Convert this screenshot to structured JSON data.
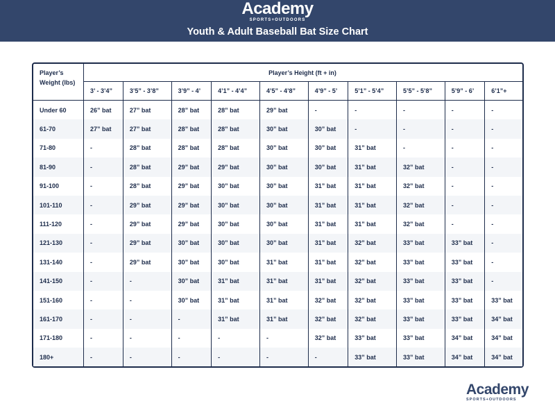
{
  "header": {
    "logo_text": "Academy",
    "logo_sub": "SPORTS+OUTDOORS",
    "title": "Youth & Adult Baseball Bat Size Chart"
  },
  "table": {
    "weight_header": "Player’s Weight (lbs)",
    "height_header": "Player’s Height (ft + in)",
    "columns": [
      "3’ - 3’4”",
      "3’5” - 3’8”",
      "3’9” - 4’",
      "4’1” - 4’4”",
      "4’5” - 4’8”",
      "4’9” - 5’",
      "5’1” - 5’4”",
      "5’5” - 5’8”",
      "5’9” - 6’",
      "6’1”+"
    ],
    "rows": [
      {
        "weight": "Under 60",
        "cells": [
          "26” bat",
          "27” bat",
          "28” bat",
          "28” bat",
          "29” bat",
          "-",
          "-",
          "-",
          "-",
          "-"
        ]
      },
      {
        "weight": "61-70",
        "cells": [
          "27” bat",
          "27” bat",
          "28” bat",
          "28” bat",
          "30” bat",
          "30” bat",
          "-",
          "-",
          "-",
          "-"
        ]
      },
      {
        "weight": "71-80",
        "cells": [
          "-",
          "28” bat",
          "28” bat",
          "28” bat",
          "30” bat",
          "30” bat",
          "31” bat",
          "-",
          "-",
          "-"
        ]
      },
      {
        "weight": "81-90",
        "cells": [
          "-",
          "28” bat",
          "29” bat",
          "29” bat",
          "30” bat",
          "30” bat",
          "31” bat",
          "32” bat",
          "-",
          "-"
        ]
      },
      {
        "weight": "91-100",
        "cells": [
          "-",
          "28” bat",
          "29” bat",
          "30” bat",
          "30” bat",
          "31” bat",
          "31” bat",
          "32” bat",
          "-",
          "-"
        ]
      },
      {
        "weight": "101-110",
        "cells": [
          "-",
          "29” bat",
          "29” bat",
          "30” bat",
          "30” bat",
          "31” bat",
          "31” bat",
          "32” bat",
          "-",
          "-"
        ]
      },
      {
        "weight": "111-120",
        "cells": [
          "-",
          "29” bat",
          "29” bat",
          "30” bat",
          "30” bat",
          "31” bat",
          "31” bat",
          "32” bat",
          "-",
          "-"
        ]
      },
      {
        "weight": "121-130",
        "cells": [
          "-",
          "29” bat",
          "30” bat",
          "30” bat",
          "30” bat",
          "31” bat",
          "32” bat",
          "33” bat",
          "33” bat",
          "-"
        ]
      },
      {
        "weight": "131-140",
        "cells": [
          "-",
          "29” bat",
          "30” bat",
          "30” bat",
          "31” bat",
          "31” bat",
          "32” bat",
          "33” bat",
          "33” bat",
          "-"
        ]
      },
      {
        "weight": "141-150",
        "cells": [
          "-",
          "-",
          "30” bat",
          "31” bat",
          "31” bat",
          "31” bat",
          "32” bat",
          "33” bat",
          "33” bat",
          "-"
        ]
      },
      {
        "weight": "151-160",
        "cells": [
          "-",
          "-",
          "30” bat",
          "31” bat",
          "31” bat",
          "32” bat",
          "32” bat",
          "33” bat",
          "33” bat",
          "33” bat"
        ]
      },
      {
        "weight": "161-170",
        "cells": [
          "-",
          "-",
          "-",
          "31” bat",
          "31” bat",
          "32” bat",
          "32” bat",
          "33” bat",
          "33” bat",
          "34” bat"
        ]
      },
      {
        "weight": "171-180",
        "cells": [
          "-",
          "-",
          "-",
          "-",
          "-",
          "32” bat",
          "33” bat",
          "33” bat",
          "34” bat",
          "34” bat"
        ]
      },
      {
        "weight": "180+",
        "cells": [
          "-",
          "-",
          "-",
          "-",
          "-",
          "-",
          "33” bat",
          "33” bat",
          "34” bat",
          "34” bat"
        ]
      }
    ]
  },
  "footer": {
    "logo_text": "Academy",
    "logo_sub": "SPORTS+OUTDOORS"
  },
  "colors": {
    "brand_navy": "#33466b",
    "text": "#1c2b4a",
    "alt_row": "#f3f5f8"
  }
}
